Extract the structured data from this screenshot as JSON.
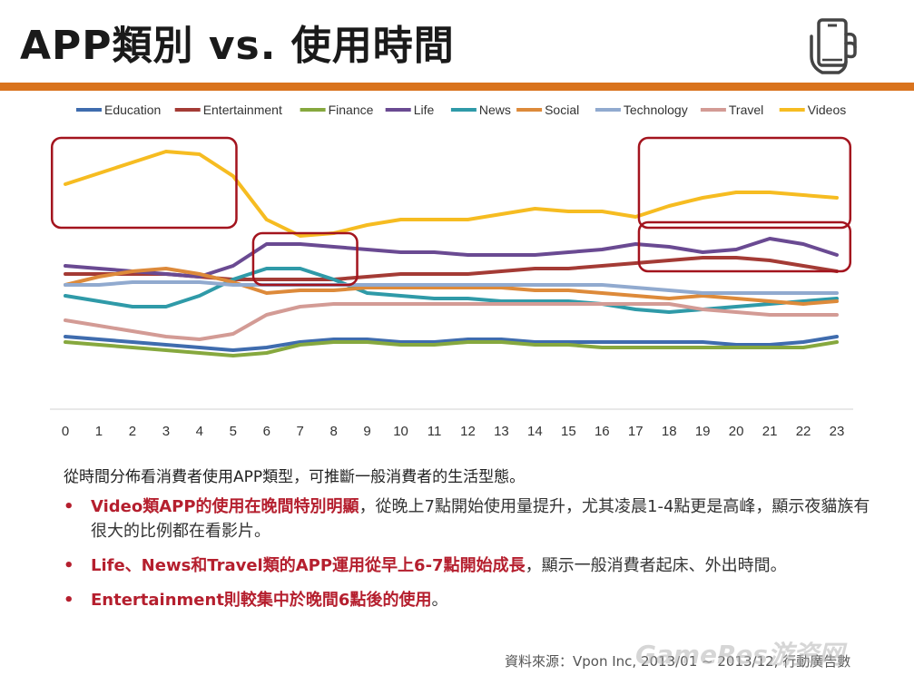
{
  "slide": {
    "title": "APP類別 vs. 使用時間",
    "intro": "從時間分佈看消費者使用APP類型，可推斷一般消費者的生活型態。",
    "bullets": [
      {
        "highlight": "Video類APP的使用在晚間特別明顯",
        "rest": "，從晚上7點開始使用量提升，尤其凌晨1-4點更是高峰，顯示夜貓族有很大的比例都在看影片。"
      },
      {
        "highlight": "Life、News和Travel類的APP運用從早上6-7點開始成長",
        "rest": "，顯示一般消費者起床、外出時間。"
      },
      {
        "highlight": "Entertainment則較集中於晚間6點後的使用",
        "rest": "。"
      }
    ],
    "source": "資料來源：Vpon Inc, 2013/01 ~ 2013/12, 行動廣告數",
    "watermark": "GameRes游资网",
    "bullet_symbol": "•",
    "accent_color": "#d9731d",
    "highlight_color": "#b51f2e",
    "icon": "phone-hand-icon"
  },
  "chart_data": {
    "type": "line",
    "x": [
      0,
      1,
      2,
      3,
      4,
      5,
      6,
      7,
      8,
      9,
      10,
      11,
      12,
      13,
      14,
      15,
      16,
      17,
      18,
      19,
      20,
      21,
      22,
      23
    ],
    "y_domain": [
      0,
      100
    ],
    "grid": false,
    "y_axis_visible": false,
    "legend_position": "top",
    "series": [
      {
        "name": "Education",
        "color": "#3f6cae",
        "values": [
          21,
          20,
          19,
          18,
          17,
          16,
          17,
          19,
          20,
          20,
          19,
          19,
          20,
          20,
          19,
          19,
          19,
          19,
          19,
          19,
          18,
          18,
          19,
          21
        ]
      },
      {
        "name": "Entertainment",
        "color": "#a43b35",
        "values": [
          44,
          44,
          44,
          44,
          43,
          42,
          42,
          42,
          42,
          43,
          44,
          44,
          44,
          45,
          46,
          46,
          47,
          48,
          49,
          50,
          50,
          49,
          47,
          45
        ]
      },
      {
        "name": "Finance",
        "color": "#86a83e",
        "values": [
          19,
          18,
          17,
          16,
          15,
          14,
          15,
          18,
          19,
          19,
          18,
          18,
          19,
          19,
          18,
          18,
          17,
          17,
          17,
          17,
          17,
          17,
          17,
          19
        ]
      },
      {
        "name": "Life",
        "color": "#6a4a92",
        "values": [
          47,
          46,
          45,
          44,
          43,
          47,
          55,
          55,
          54,
          53,
          52,
          52,
          51,
          51,
          51,
          52,
          53,
          55,
          54,
          52,
          53,
          57,
          55,
          51
        ]
      },
      {
        "name": "News",
        "color": "#2f9aa8",
        "values": [
          36,
          34,
          32,
          32,
          36,
          42,
          46,
          46,
          42,
          37,
          36,
          35,
          35,
          34,
          34,
          34,
          33,
          31,
          30,
          31,
          32,
          33,
          34,
          35
        ]
      },
      {
        "name": "Social",
        "color": "#dd8a3a",
        "values": [
          40,
          43,
          45,
          46,
          44,
          41,
          37,
          38,
          38,
          39,
          39,
          39,
          39,
          39,
          38,
          38,
          37,
          36,
          35,
          36,
          35,
          34,
          33,
          34
        ]
      },
      {
        "name": "Technology",
        "color": "#91aacf",
        "values": [
          40,
          40,
          41,
          41,
          41,
          40,
          40,
          40,
          40,
          40,
          40,
          40,
          40,
          40,
          40,
          40,
          40,
          39,
          38,
          37,
          37,
          37,
          37,
          37
        ]
      },
      {
        "name": "Travel",
        "color": "#d39b95",
        "values": [
          27,
          25,
          23,
          21,
          20,
          22,
          29,
          32,
          33,
          33,
          33,
          33,
          33,
          33,
          33,
          33,
          33,
          33,
          33,
          31,
          30,
          29,
          29,
          29
        ]
      },
      {
        "name": "Videos",
        "color": "#f6bc21",
        "values": [
          77,
          81,
          85,
          89,
          88,
          80,
          64,
          58,
          59,
          62,
          64,
          64,
          64,
          66,
          68,
          67,
          67,
          65,
          69,
          72,
          74,
          74,
          73,
          72
        ]
      }
    ],
    "highlight_boxes": [
      {
        "x_range": [
          -0.4,
          5.1
        ],
        "y_range": [
          61,
          94
        ]
      },
      {
        "x_range": [
          17.1,
          23.4
        ],
        "y_range": [
          61,
          94
        ]
      },
      {
        "x_range": [
          5.6,
          8.7
        ],
        "y_range": [
          40,
          59
        ]
      },
      {
        "x_range": [
          17.1,
          23.4
        ],
        "y_range": [
          45,
          63
        ]
      }
    ]
  }
}
